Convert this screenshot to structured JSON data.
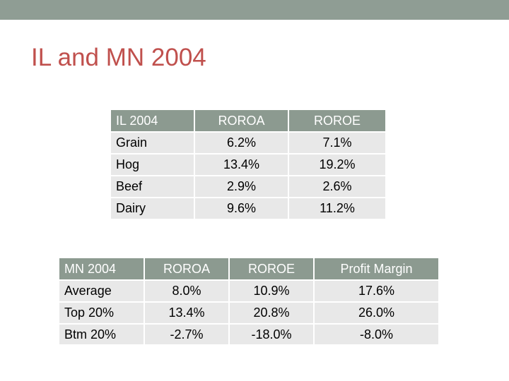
{
  "slide": {
    "title": "IL and MN 2004"
  },
  "il_table": {
    "headers": [
      "IL 2004",
      "ROROA",
      "ROROE"
    ],
    "rows": [
      [
        "Grain",
        "6.2%",
        "7.1%"
      ],
      [
        "Hog",
        "13.4%",
        "19.2%"
      ],
      [
        "Beef",
        "2.9%",
        "2.6%"
      ],
      [
        "Dairy",
        "9.6%",
        "11.2%"
      ]
    ]
  },
  "mn_table": {
    "headers": [
      "MN 2004",
      "ROROA",
      "ROROE",
      "Profit Margin"
    ],
    "rows": [
      [
        "Average",
        "8.0%",
        "10.9%",
        "17.6%"
      ],
      [
        "Top 20%",
        "13.4%",
        "20.8%",
        "26.0%"
      ],
      [
        "Btm 20%",
        "-2.7%",
        "-18.0%",
        "-8.0%"
      ]
    ]
  },
  "colors": {
    "title": "#c0504d",
    "top_bar": "#8f9d94",
    "header_bg": "#8c9a90",
    "cell_bg": "#e8e8e8"
  }
}
